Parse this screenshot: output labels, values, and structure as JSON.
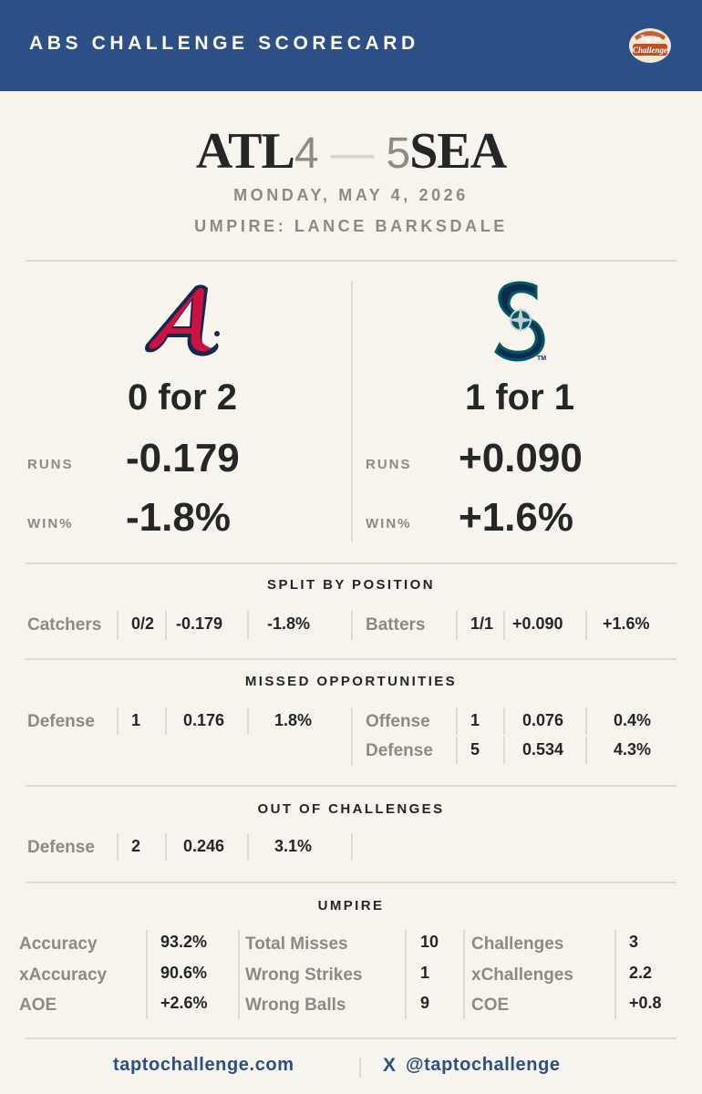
{
  "header": {
    "title": "ABS CHALLENGE SCORECARD",
    "logo_text": "Tap to Challenge"
  },
  "game": {
    "away_team": "ATL",
    "away_score": "4",
    "dash": "—",
    "home_score": "5",
    "home_team": "SEA",
    "date": "MONDAY, MAY 4, 2026",
    "umpire": "UMPIRE: LANCE BARKSDALE"
  },
  "teams": {
    "away": {
      "record": "0 for 2",
      "runs_label": "RUNS",
      "runs": "-0.179",
      "win_label": "WIN%",
      "win": "-1.8%"
    },
    "home": {
      "record": "1 for 1",
      "runs_label": "RUNS",
      "runs": "+0.090",
      "win_label": "WIN%",
      "win": "+1.6%"
    }
  },
  "split": {
    "title": "SPLIT BY POSITION",
    "left": {
      "label": "Catchers",
      "c1": "0/2",
      "c2": "-0.179",
      "c3": "-1.8%"
    },
    "right": {
      "label": "Batters",
      "c1": "1/1",
      "c2": "+0.090",
      "c3": "+1.6%"
    }
  },
  "missed": {
    "title": "MISSED OPPORTUNITIES",
    "left": {
      "label": "Defense",
      "c1": "1",
      "c2": "0.176",
      "c3": "1.8%"
    },
    "right": [
      {
        "label": "Offense",
        "c1": "1",
        "c2": "0.076",
        "c3": "0.4%"
      },
      {
        "label": "Defense",
        "c1": "5",
        "c2": "0.534",
        "c3": "4.3%"
      }
    ]
  },
  "out_of_challenges": {
    "title": "OUT OF CHALLENGES",
    "left": {
      "label": "Defense",
      "c1": "2",
      "c2": "0.246",
      "c3": "3.1%"
    }
  },
  "umpire": {
    "title": "UMPIRE",
    "col1": [
      {
        "label": "Accuracy",
        "value": "93.2%"
      },
      {
        "label": "xAccuracy",
        "value": "90.6%"
      },
      {
        "label": "AOE",
        "value": "+2.6%"
      }
    ],
    "col2": [
      {
        "label": "Total Misses",
        "value": "10"
      },
      {
        "label": "Wrong Strikes",
        "value": "1"
      },
      {
        "label": "Wrong Balls",
        "value": "9"
      }
    ],
    "col3": [
      {
        "label": "Challenges",
        "value": "3"
      },
      {
        "label": "xChallenges",
        "value": "2.2"
      },
      {
        "label": "COE",
        "value": "+0.8"
      }
    ]
  },
  "footer": {
    "website": "taptochallenge.com",
    "x_icon": "X",
    "handle": "@taptochallenge"
  },
  "colors": {
    "navy": "#2c4f86",
    "background": "#f7f4ee",
    "muted": "#8e8a83",
    "braves_red": "#ce1141",
    "braves_navy": "#13274f",
    "mariners_teal": "#005c5c",
    "mariners_navy": "#0c2c56"
  }
}
